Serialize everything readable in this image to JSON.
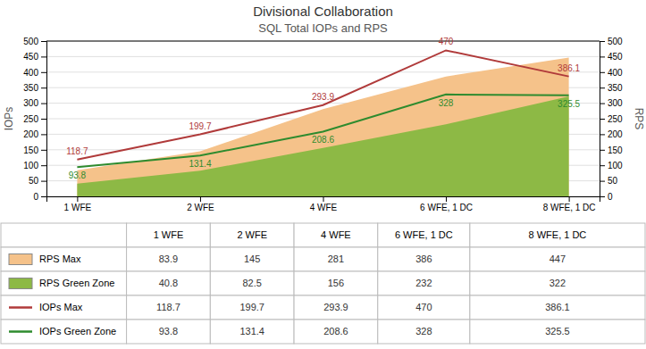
{
  "chart_data": {
    "type": "combo",
    "title": "Divisional Collaboration",
    "subtitle": "SQL Total IOPs and RPS",
    "categories": [
      "1 WFE",
      "2 WFE",
      "4 WFE",
      "6 WFE, 1 DC",
      "8 WFE, 1 DC"
    ],
    "ylabel": "IOPs",
    "y2label": "RPS",
    "ylim": [
      0,
      500
    ],
    "yticks": [
      0,
      50,
      100,
      150,
      200,
      250,
      300,
      350,
      400,
      450,
      500
    ],
    "y2lim": [
      0,
      500
    ],
    "y2ticks": [
      0,
      50,
      100,
      150,
      200,
      250,
      300,
      350,
      400,
      450,
      500
    ],
    "grid": true,
    "series": [
      {
        "name": "RPS Max",
        "type": "area",
        "axis": "y2",
        "color": "#F5C28A",
        "values": [
          83.9,
          145,
          281,
          386,
          447
        ]
      },
      {
        "name": "RPS Green Zone",
        "type": "area",
        "axis": "y2",
        "color": "#8DB945",
        "values": [
          40.8,
          82.5,
          156,
          232,
          322
        ]
      },
      {
        "name": "IOPs Max",
        "type": "line",
        "color": "#B03A3A",
        "data_labels": true,
        "values": [
          118.7,
          199.7,
          293.9,
          470,
          386.1
        ]
      },
      {
        "name": "IOPs Green Zone",
        "type": "line",
        "color": "#2E8B2E",
        "data_labels": true,
        "values": [
          93.8,
          131.4,
          208.6,
          328,
          325.5
        ]
      }
    ]
  }
}
